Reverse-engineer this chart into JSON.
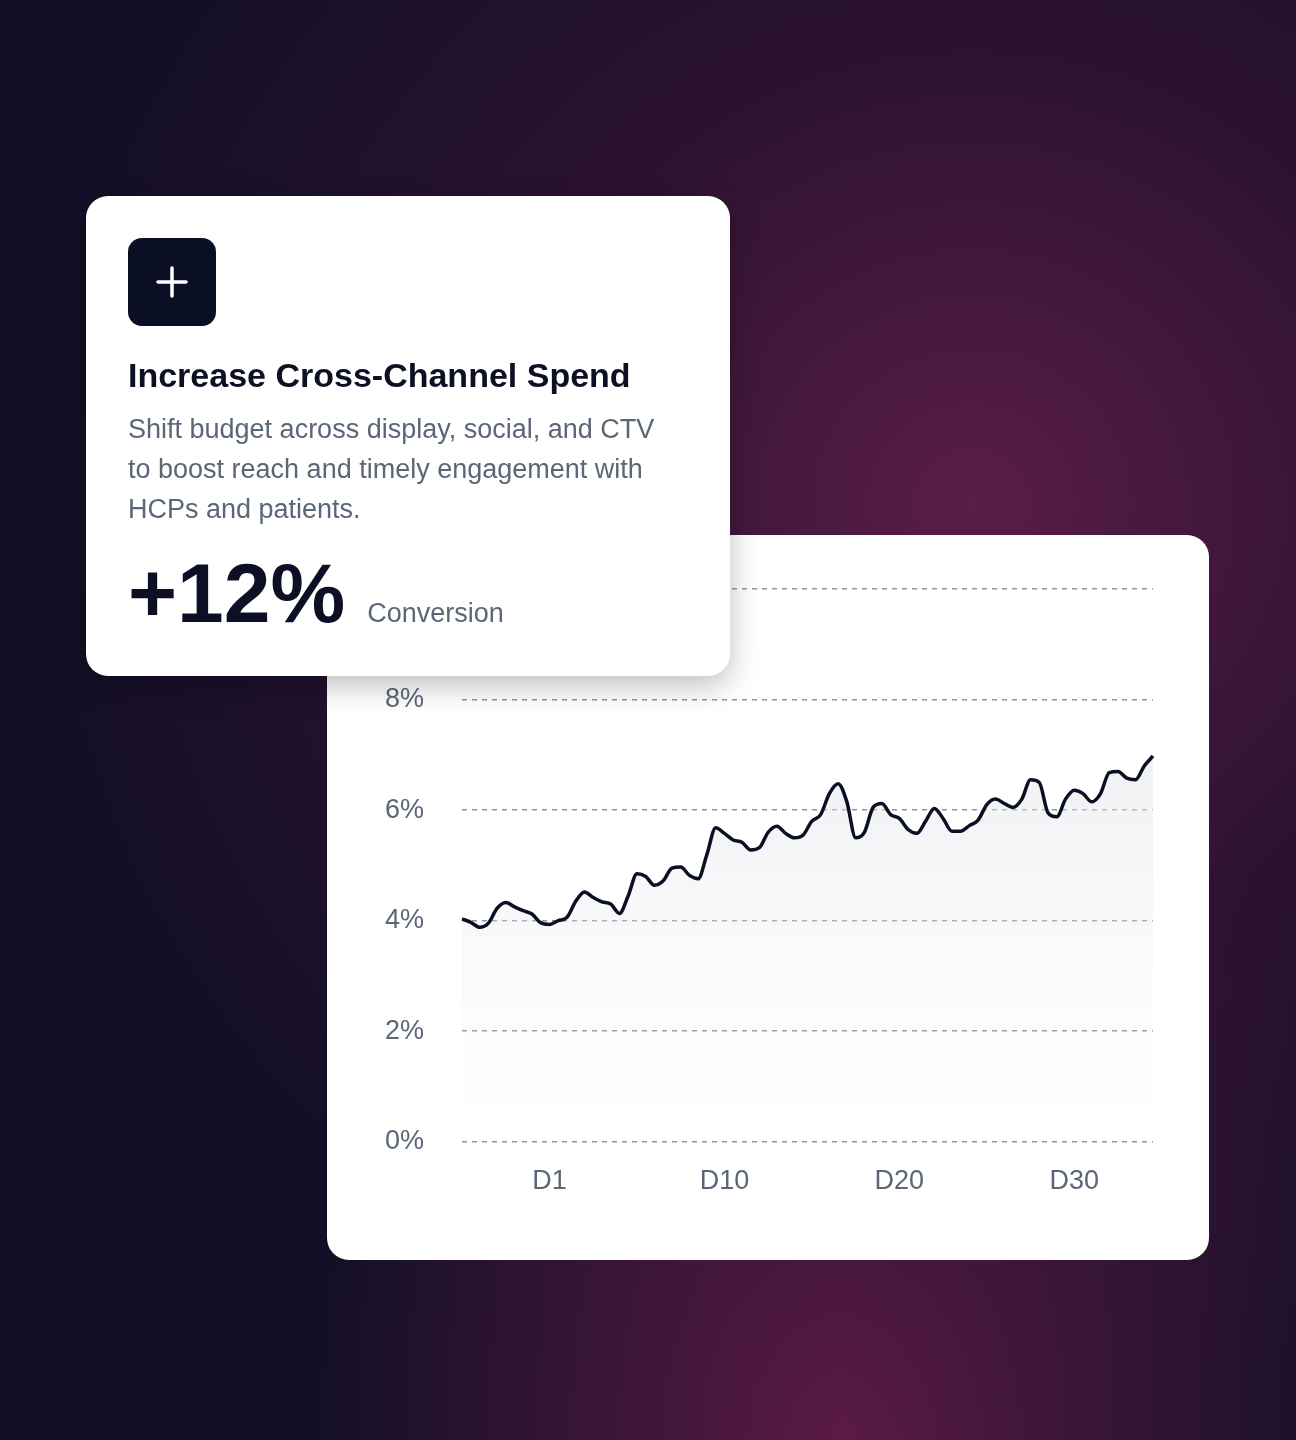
{
  "chart_data": [
    {
      "type": "other",
      "title": "Increase Cross-Channel Spend",
      "subtitle": "Shift budget across display, social, and CTV to boost reach and timely engagement with HCPs and patients.",
      "annotations": [
        "+12%",
        "Conversion"
      ]
    },
    {
      "type": "area",
      "categories": [
        null,
        null,
        null,
        null,
        null,
        null,
        null,
        null,
        null,
        null,
        "D1",
        null,
        null,
        null,
        null,
        null,
        null,
        null,
        null,
        null,
        null,
        null,
        null,
        null,
        null,
        null,
        null,
        null,
        null,
        null,
        "D10",
        null,
        null,
        null,
        null,
        null,
        null,
        null,
        null,
        null,
        null,
        null,
        null,
        null,
        null,
        null,
        null,
        null,
        null,
        null,
        "D20",
        null,
        null,
        null,
        null,
        null,
        null,
        null,
        null,
        null,
        null,
        null,
        null,
        null,
        null,
        null,
        null,
        null,
        null,
        null,
        "D30",
        null,
        null,
        null,
        null,
        null,
        null,
        null,
        null,
        null
      ],
      "series": [
        {
          "color": "#0b0f24",
          "values": [
            4.03,
            3.97,
            3.88,
            3.95,
            4.22,
            4.33,
            4.25,
            4.18,
            4.12,
            3.96,
            3.93,
            4.0,
            4.06,
            4.35,
            4.52,
            4.42,
            4.34,
            4.3,
            4.13,
            4.45,
            4.85,
            4.8,
            4.64,
            4.72,
            4.95,
            4.97,
            4.82,
            4.76,
            5.2,
            5.68,
            5.58,
            5.46,
            5.42,
            5.28,
            5.32,
            5.6,
            5.71,
            5.58,
            5.5,
            5.55,
            5.8,
            5.92,
            6.3,
            6.48,
            6.15,
            5.5,
            5.6,
            6.05,
            6.12,
            5.92,
            5.85,
            5.65,
            5.58,
            5.8,
            6.03,
            5.85,
            5.62,
            5.62,
            5.72,
            5.82,
            6.1,
            6.2,
            6.12,
            6.05,
            6.2,
            6.55,
            6.5,
            5.95,
            5.88,
            6.2,
            6.36,
            6.3,
            6.15,
            6.3,
            6.68,
            6.7,
            6.58,
            6.55,
            6.8,
            6.98
          ]
        }
      ],
      "ylim": [
        0,
        10
      ],
      "yticks": [
        {
          "value": 0,
          "label": "0%"
        },
        {
          "value": 2,
          "label": "2%"
        },
        {
          "value": 4,
          "label": "4%"
        },
        {
          "value": 6,
          "label": "6%"
        },
        {
          "value": 8,
          "label": "8%"
        },
        {
          "value": 10,
          "label": null
        }
      ],
      "grid": "y",
      "legend": false,
      "marker": "none",
      "line_style": "solid"
    }
  ]
}
